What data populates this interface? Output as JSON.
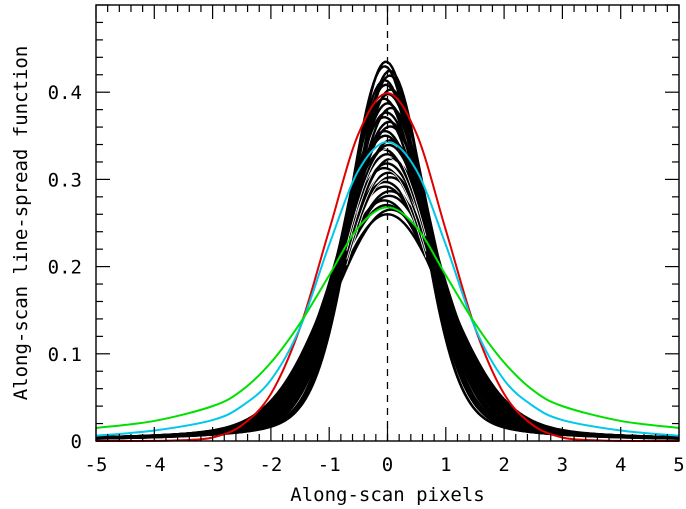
{
  "chart_data": {
    "type": "line",
    "xlabel": "Along-scan pixels",
    "ylabel": "Along-scan line-spread function",
    "xlim": [
      -5,
      5
    ],
    "ylim": [
      0,
      0.5
    ],
    "x_ticks": [
      "-5",
      "-4",
      "-3",
      "-2",
      "-1",
      "0",
      "1",
      "2",
      "3",
      "4",
      "5"
    ],
    "y_ticks": [
      "0",
      "0.1",
      "0.2",
      "0.3",
      "0.4"
    ],
    "grid": false,
    "reference_line": {
      "x": 0,
      "style": "dashed"
    },
    "band": {
      "description_color": "#000000",
      "peak_range": [
        0.26,
        0.435
      ]
    },
    "series": [
      {
        "color": "#e00000",
        "x": [
          -5,
          -4,
          -3.5,
          -3,
          -2.5,
          -2,
          -1.5,
          -1,
          -0.5,
          0,
          0.5,
          1,
          1.5,
          2,
          2.5,
          3,
          3.5,
          4,
          5
        ],
        "values": [
          0,
          0.0001,
          0.001,
          0.004,
          0.018,
          0.054,
          0.13,
          0.242,
          0.352,
          0.399,
          0.352,
          0.242,
          0.13,
          0.054,
          0.018,
          0.004,
          0.001,
          0.0001,
          0
        ]
      },
      {
        "color": "#00c8e8",
        "x": [
          -5,
          -4,
          -3,
          -2.5,
          -2,
          -1.5,
          -1,
          -0.5,
          0,
          0.5,
          1,
          1.5,
          2,
          2.5,
          3,
          4,
          5
        ],
        "values": [
          0.006,
          0.012,
          0.024,
          0.04,
          0.07,
          0.13,
          0.225,
          0.31,
          0.343,
          0.31,
          0.225,
          0.13,
          0.07,
          0.04,
          0.024,
          0.012,
          0.006
        ]
      },
      {
        "color": "#00e000",
        "x": [
          -5,
          -4,
          -3,
          -2.5,
          -2,
          -1.5,
          -1,
          -0.5,
          0,
          0.5,
          1,
          1.5,
          2,
          2.5,
          3,
          4,
          5
        ],
        "values": [
          0.015,
          0.023,
          0.04,
          0.058,
          0.09,
          0.135,
          0.19,
          0.245,
          0.268,
          0.245,
          0.19,
          0.135,
          0.09,
          0.058,
          0.04,
          0.023,
          0.015
        ]
      }
    ]
  }
}
